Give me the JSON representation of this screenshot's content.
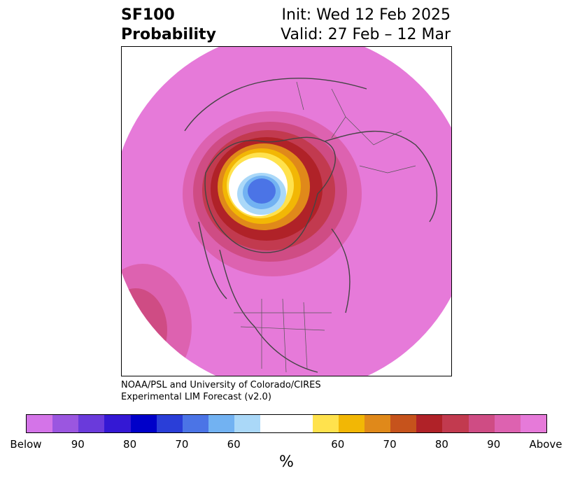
{
  "title": {
    "left_line1": "SF100",
    "left_line2": "Probability",
    "right_line1": "Init: Wed 12 Feb 2025",
    "right_line2": "Valid: 27 Feb – 12 Mar"
  },
  "credit": {
    "line1": "NOAA/PSL and University of Colorado/CIRES",
    "line2": "Experimental LIM Forecast (v2.0)"
  },
  "map": {
    "projection": "north-polar-stereographic",
    "background_fill_color": "#e67ad9",
    "anomaly_center_region": "Arctic / northern Greenland",
    "contour_colors": [
      "#b02228",
      "#c23a4f",
      "#e0891a",
      "#f2b705",
      "#ffe24d",
      "#ffffff",
      "#aad8f8",
      "#72b2f2",
      "#4b74e6"
    ]
  },
  "colorbar": {
    "label": "%",
    "colors": [
      "#d474e8",
      "#9b56e0",
      "#6a3adb",
      "#3418d4",
      "#0000c9",
      "#2a3ed8",
      "#4b74e6",
      "#72b2f2",
      "#aad8f8",
      "#ffffff",
      "#ffe24d",
      "#f2b705",
      "#e0891a",
      "#c6531c",
      "#b02228",
      "#c23a4f",
      "#cf4c84",
      "#dd62b0",
      "#e67ad9"
    ],
    "widths": [
      1,
      1,
      1,
      1,
      1,
      1,
      1,
      1,
      1,
      2,
      1,
      1,
      1,
      1,
      1,
      1,
      1,
      1,
      1
    ],
    "tick_labels": [
      "Below",
      "90",
      "80",
      "70",
      "60",
      "60",
      "70",
      "80",
      "90",
      "Above"
    ]
  }
}
